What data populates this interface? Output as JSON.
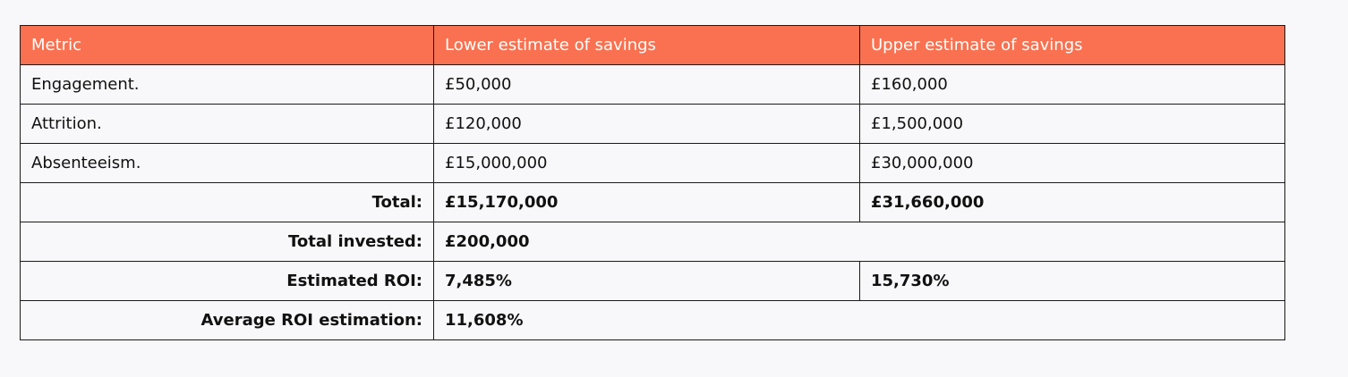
{
  "table": {
    "headers": [
      "Metric",
      "Lower estimate of savings",
      "Upper estimate of savings"
    ],
    "rows": [
      {
        "metric": "Engagement.",
        "lower": "£50,000",
        "upper": "£160,000"
      },
      {
        "metric": "Attrition.",
        "lower": "£120,000",
        "upper": "£1,500,000"
      },
      {
        "metric": "Absenteeism.",
        "lower": "£15,000,000",
        "upper": "£30,000,000"
      }
    ],
    "total": {
      "label": "Total:",
      "lower": "£15,170,000",
      "upper": "£31,660,000"
    },
    "invested": {
      "label": "Total invested:",
      "value": "£200,000"
    },
    "roi": {
      "label": "Estimated ROI:",
      "lower": "7,485%",
      "upper": "15,730%"
    },
    "avg_roi": {
      "label": "Average ROI estimation:",
      "value": "11,608%"
    }
  },
  "colors": {
    "header_bg": "#f97150",
    "header_text": "#ffffff",
    "page_bg": "#f8f8fa",
    "border": "#1a1a1a"
  }
}
